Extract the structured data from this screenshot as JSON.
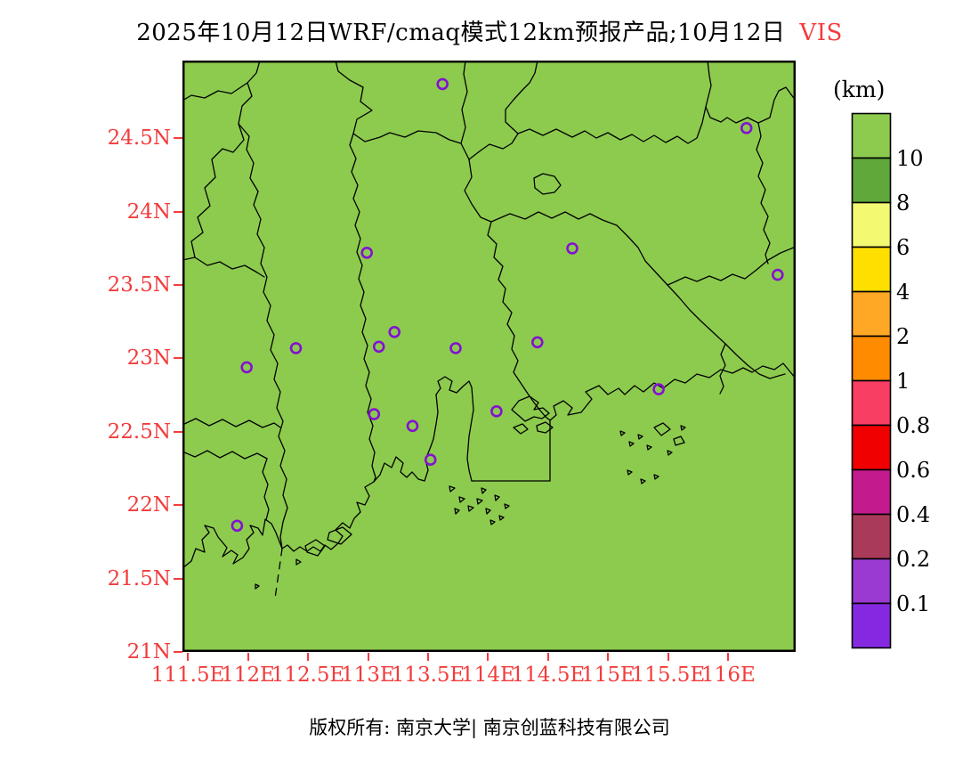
{
  "title": {
    "text": "2025年10月12日WRF/cmaq模式12km预报产品;10月12日",
    "variable": "VIS"
  },
  "legend": {
    "unit": "(km)",
    "levels": [
      "10",
      "8",
      "6",
      "4",
      "2",
      "1",
      "0.8",
      "0.6",
      "0.4",
      "0.2",
      "0.1"
    ],
    "colors_top_to_bottom": [
      "#8dcb4e",
      "#60a83a",
      "#f3f971",
      "#ffdf00",
      "#ffa826",
      "#ff8b00",
      "#f83e63",
      "#f00000",
      "#c31b8e",
      "#a93a5a",
      "#9a3ad2",
      "#8529e0"
    ]
  },
  "axes": {
    "tick_color": "#f23c3c",
    "y": [
      {
        "label": "24.5N",
        "lat": 24.5
      },
      {
        "label": "24N",
        "lat": 24.0
      },
      {
        "label": "23.5N",
        "lat": 23.5
      },
      {
        "label": "23N",
        "lat": 23.0
      },
      {
        "label": "22.5N",
        "lat": 22.5
      },
      {
        "label": "22N",
        "lat": 22.0
      },
      {
        "label": "21.5N",
        "lat": 21.5
      },
      {
        "label": "21N",
        "lat": 21.0
      }
    ],
    "x": [
      {
        "label": "111.5E",
        "lon": 111.5
      },
      {
        "label": "112E",
        "lon": 112.0
      },
      {
        "label": "112.5E",
        "lon": 112.5
      },
      {
        "label": "113E",
        "lon": 113.0
      },
      {
        "label": "113.5E",
        "lon": 113.5
      },
      {
        "label": "114E",
        "lon": 114.0
      },
      {
        "label": "114.5E",
        "lon": 114.5
      },
      {
        "label": "115E",
        "lon": 115.0
      },
      {
        "label": "115.5E",
        "lon": 115.5
      },
      {
        "label": "116E",
        "lon": 116.0
      }
    ]
  },
  "map": {
    "background_color": "#8dcb4e",
    "boundary_color": "#000000",
    "marker_color": "#8311d1",
    "extent": {
      "lon_min": 111.455,
      "lon_max": 116.56,
      "lat_min": 21.0,
      "lat_max": 25.03
    },
    "stations": [
      {
        "lon": 113.62,
        "lat": 24.87
      },
      {
        "lon": 116.15,
        "lat": 24.57
      },
      {
        "lon": 112.99,
        "lat": 23.72
      },
      {
        "lon": 114.7,
        "lat": 23.75
      },
      {
        "lon": 116.41,
        "lat": 23.57
      },
      {
        "lon": 113.22,
        "lat": 23.18
      },
      {
        "lon": 113.09,
        "lat": 23.08
      },
      {
        "lon": 112.4,
        "lat": 23.07
      },
      {
        "lon": 113.73,
        "lat": 23.07
      },
      {
        "lon": 114.41,
        "lat": 23.11
      },
      {
        "lon": 111.99,
        "lat": 22.94
      },
      {
        "lon": 115.42,
        "lat": 22.79
      },
      {
        "lon": 113.05,
        "lat": 22.62
      },
      {
        "lon": 114.07,
        "lat": 22.64
      },
      {
        "lon": 113.37,
        "lat": 22.54
      },
      {
        "lon": 113.52,
        "lat": 22.31
      },
      {
        "lon": 111.91,
        "lat": 21.86
      }
    ]
  },
  "footer": {
    "copyright": "版权所有: 南京大学| 南京创蓝科技有限公司"
  }
}
